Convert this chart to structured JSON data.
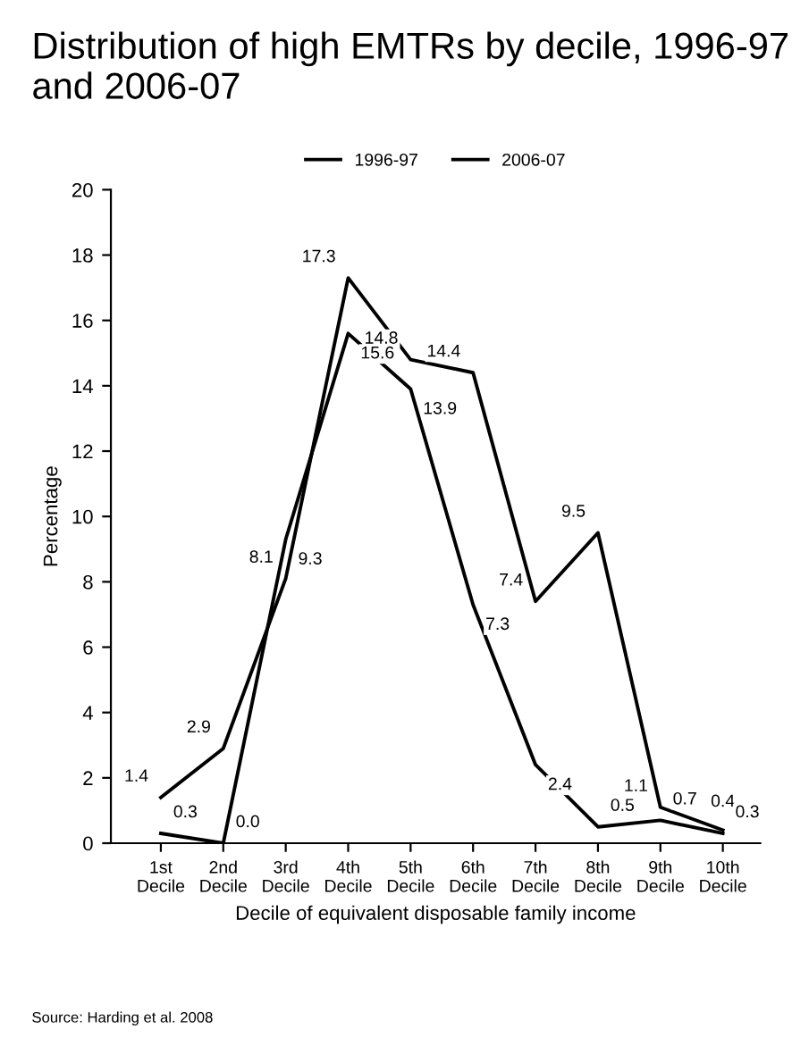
{
  "chart_data": {
    "type": "line",
    "title": "Distribution of high EMTRs by decile, 1996-97 and 2006-07",
    "categories": [
      "1st\nDecile",
      "2nd\nDecile",
      "3rd\nDecile",
      "4th\nDecile",
      "5th\nDecile",
      "6th\nDecile",
      "7th\nDecile",
      "8th\nDecile",
      "9th\nDecile",
      "10th\nDecile"
    ],
    "xlabel": "Decile of equivalent disposable family income",
    "ylabel": "Percentage",
    "series": [
      {
        "name": "1996-97",
        "color": "#000000",
        "values": [
          1.4,
          2.9,
          8.1,
          17.3,
          14.8,
          14.4,
          7.4,
          9.5,
          1.1,
          0.4
        ]
      },
      {
        "name": "2006-07",
        "color": "#000000",
        "values": [
          0.3,
          0.0,
          9.3,
          15.6,
          13.9,
          7.3,
          2.4,
          0.5,
          0.7,
          0.3
        ],
        "value_labels": [
          "0.3",
          "0.0",
          "9.3",
          "15.6",
          "13.9",
          "7.3",
          "2.4",
          "0.5",
          "0.7",
          "0.3"
        ]
      }
    ],
    "ylim": [
      0,
      20
    ],
    "yticks": [
      0,
      2,
      4,
      6,
      8,
      10,
      12,
      14,
      16,
      18,
      20
    ],
    "data_labels": true,
    "legend": "top",
    "grid": false,
    "annotations": [
      "Source: Harding et al. 2008"
    ]
  }
}
